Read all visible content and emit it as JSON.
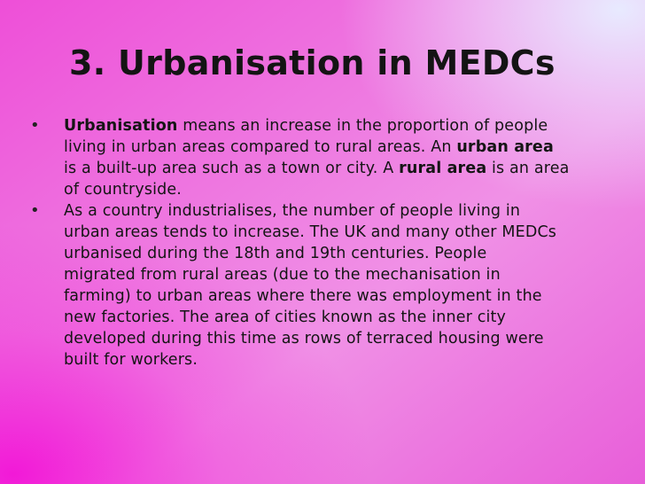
{
  "slide": {
    "title": "3. Urbanisation in MEDCs",
    "bullet_symbol": "•",
    "bullet1": {
      "l1_bold": "Urbanisation",
      "l1_rest": " means an increase in the proportion of people",
      "l2_a": "living in urban areas compared to rural areas. An ",
      "l2_bold": "urban area",
      "l3_a": "is a built-up area such as a town or city. A ",
      "l3_bold": "rural area",
      "l3_rest": " is an area",
      "l4": "of countryside."
    },
    "bullet2": {
      "l1": "As a country industrialises, the number of people living in",
      "l2": "urban areas tends to increase. The UK and many other MEDCs",
      "l3": "urbanised during the 18th and 19th centuries. People",
      "l4": "migrated from rural areas (due to the mechanisation in",
      "l5": "farming) to urban areas where there was employment in the",
      "l6": "new factories. The area of cities known as the inner city",
      "l7": "developed during this time as rows of terraced housing were",
      "l8": "built for workers."
    }
  }
}
